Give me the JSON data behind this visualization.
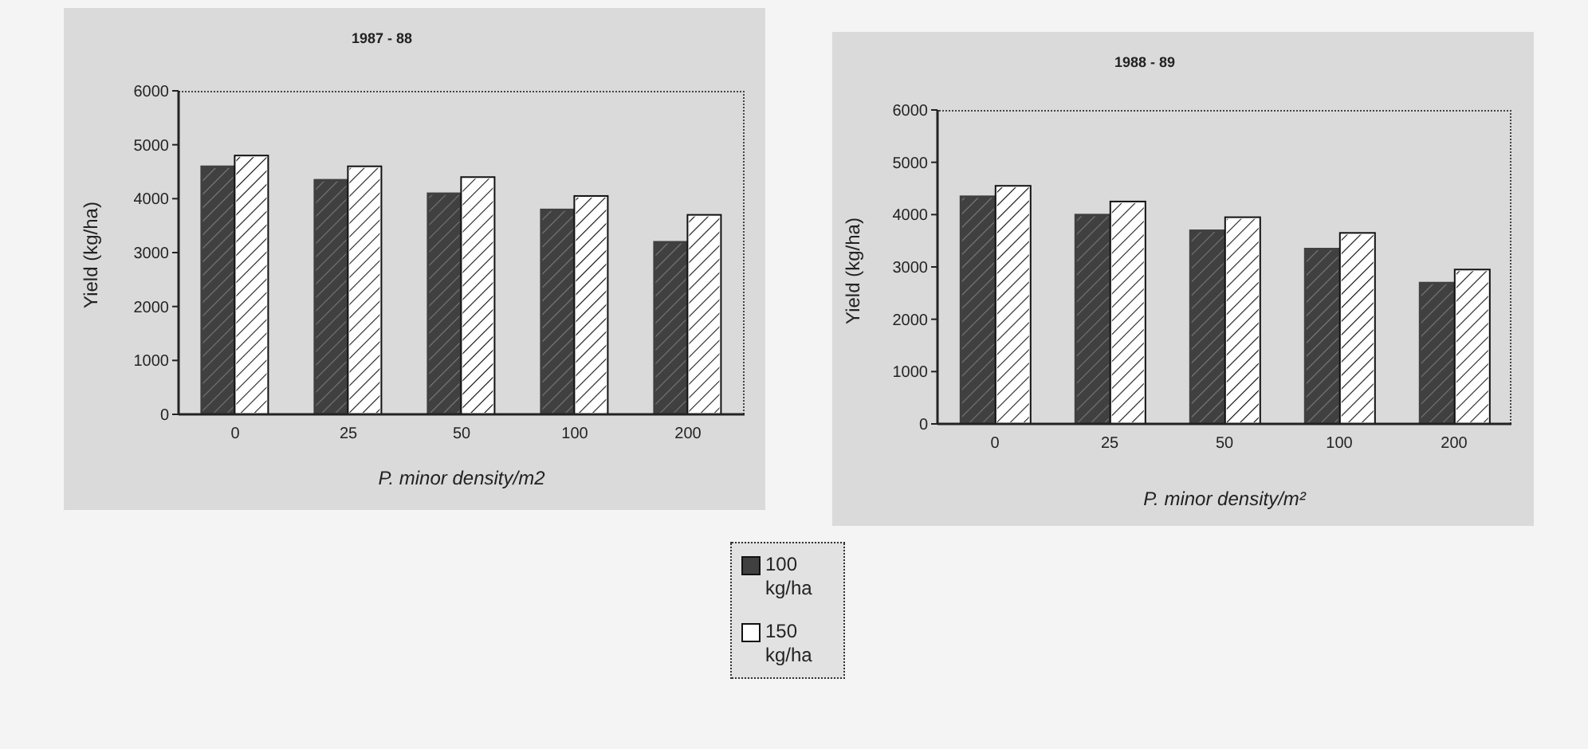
{
  "chart_data": [
    {
      "type": "bar",
      "title": "1987 - 88",
      "xlabel": "P. minor density/m2",
      "ylabel": "Yield (kg/ha)",
      "categories": [
        "0",
        "25",
        "50",
        "100",
        "200"
      ],
      "series": [
        {
          "name": "100 kg/ha",
          "color": "#404040",
          "values": [
            4600,
            4350,
            4100,
            3800,
            3200
          ]
        },
        {
          "name": "150 kg/ha",
          "color": "#ffffff",
          "values": [
            4800,
            4600,
            4400,
            4050,
            3700
          ]
        }
      ],
      "ylim": [
        0,
        6000
      ],
      "yticks": [
        0,
        1000,
        2000,
        3000,
        4000,
        5000,
        6000
      ],
      "legend": "bottom right"
    },
    {
      "type": "bar",
      "title": "1988 - 89",
      "xlabel": "P. minor density/m²",
      "ylabel": "Yield (kg/ha)",
      "categories": [
        "0",
        "25",
        "50",
        "100",
        "200"
      ],
      "series": [
        {
          "color": "#404040",
          "values": [
            4350,
            4000,
            3700,
            3350,
            2700
          ]
        },
        {
          "color": "#ffffff",
          "values": [
            4550,
            4250,
            3950,
            3650,
            2950
          ]
        }
      ],
      "ylim": [
        0,
        6000
      ],
      "yticks": [
        0,
        1000,
        2000,
        3000,
        4000,
        5000,
        6000
      ]
    }
  ]
}
